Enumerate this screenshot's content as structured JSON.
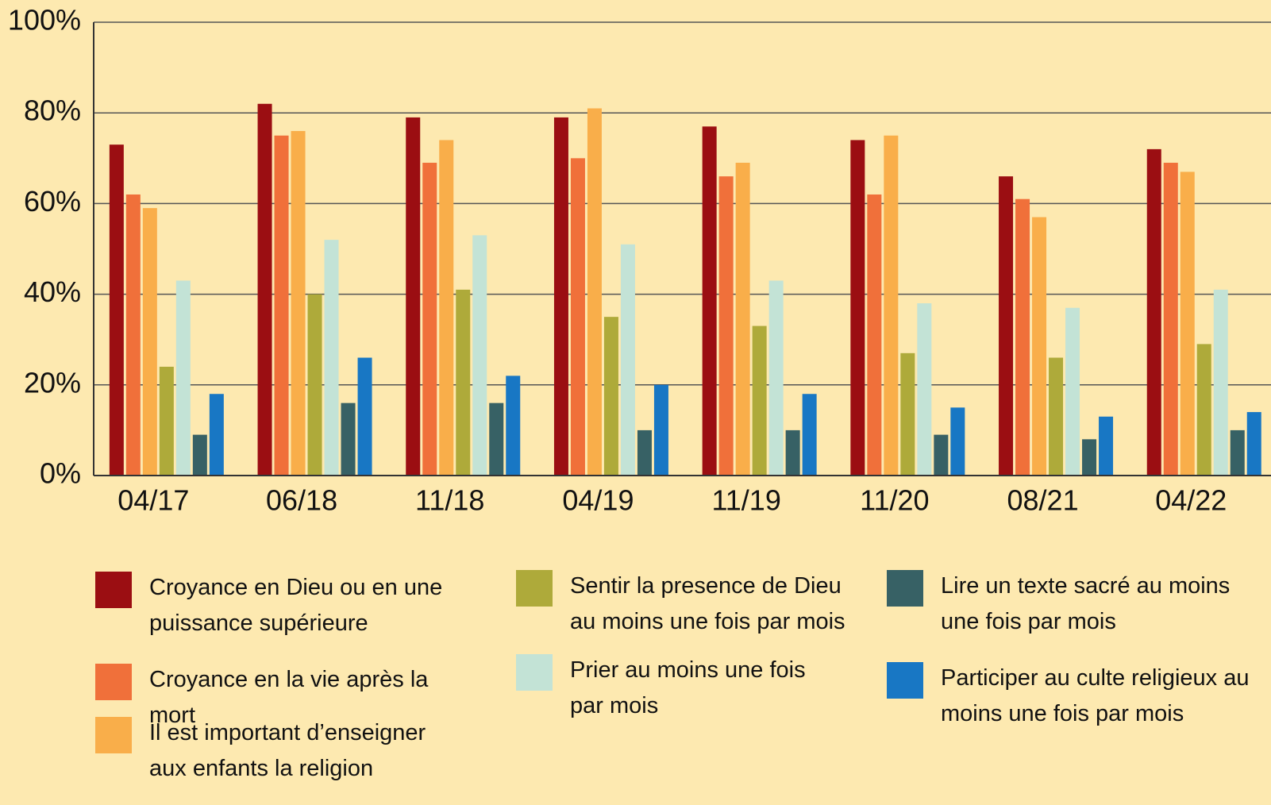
{
  "chart_data": {
    "type": "bar",
    "categories": [
      "04/17",
      "06/18",
      "11/18",
      "04/19",
      "11/19",
      "11/20",
      "08/21",
      "04/22"
    ],
    "series": [
      {
        "name": "Croyance en Dieu ou en une puissance supérieure",
        "color": "#9b0e12",
        "values": [
          73,
          82,
          79,
          79,
          77,
          74,
          66,
          72
        ]
      },
      {
        "name": "Croyance en la vie après la mort",
        "color": "#f0703a",
        "values": [
          62,
          75,
          69,
          70,
          66,
          62,
          61,
          69
        ]
      },
      {
        "name": "Il est important d’enseigner aux enfants la religion",
        "color": "#f9ae4a",
        "values": [
          59,
          76,
          74,
          81,
          69,
          75,
          57,
          67
        ]
      },
      {
        "name": "Sentir la presence de Dieu au moins une fois par mois",
        "color": "#aeaa3a",
        "values": [
          24,
          40,
          41,
          35,
          33,
          27,
          26,
          29
        ]
      },
      {
        "name": "Prier au moins une fois par mois",
        "color": "#c3e3d6",
        "values": [
          43,
          52,
          53,
          51,
          43,
          38,
          37,
          41
        ]
      },
      {
        "name": "Lire un texte sacré au moins une fois par mois",
        "color": "#376165",
        "values": [
          9,
          16,
          16,
          10,
          10,
          9,
          8,
          10
        ]
      },
      {
        "name": "Participer au culte religieux au moins une fois par mois",
        "color": "#1877c4",
        "values": [
          18,
          26,
          22,
          20,
          18,
          15,
          13,
          14
        ]
      }
    ],
    "ylim": [
      0,
      100
    ],
    "yticks": [
      {
        "value": 0,
        "label": "0%"
      },
      {
        "value": 20,
        "label": "20%"
      },
      {
        "value": 40,
        "label": "40%"
      },
      {
        "value": 60,
        "label": "60%"
      },
      {
        "value": 80,
        "label": "80%"
      },
      {
        "value": 100,
        "label": "100%"
      }
    ],
    "grid": true
  }
}
